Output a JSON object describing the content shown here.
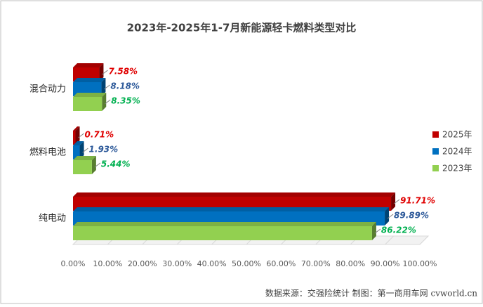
{
  "chart_data": {
    "type": "bar",
    "orientation": "horizontal",
    "title": "2023年-2025年1-7月新能源轻卡燃料类型对比",
    "categories": [
      "混合动力",
      "燃料电池",
      "纯电动"
    ],
    "series": [
      {
        "name": "2025年",
        "color": "#c00000",
        "values": [
          7.58,
          0.71,
          91.71
        ],
        "value_labels": [
          "7.58%",
          "0.71%",
          "91.71%"
        ],
        "label_color": "#e00000"
      },
      {
        "name": "2024年",
        "color": "#0070c0",
        "values": [
          8.18,
          1.93,
          89.89
        ],
        "value_labels": [
          "8.18%",
          "1.93%",
          "89.89%"
        ],
        "label_color": "#2e5a9a"
      },
      {
        "name": "2023年",
        "color": "#92d050",
        "values": [
          8.35,
          5.44,
          86.22
        ],
        "value_labels": [
          "8.35%",
          "5.44%",
          "86.22%"
        ],
        "label_color": "#00b050"
      }
    ],
    "xlim": [
      0,
      100
    ],
    "xticks": [
      {
        "value": 0,
        "label": "0.00%"
      },
      {
        "value": 10,
        "label": "10.00%"
      },
      {
        "value": 20,
        "label": "20.00%"
      },
      {
        "value": 30,
        "label": "30.00%"
      },
      {
        "value": 40,
        "label": "40.00%"
      },
      {
        "value": 50,
        "label": "50.00%"
      },
      {
        "value": 60,
        "label": "60.00%"
      },
      {
        "value": 70,
        "label": "70.00%"
      },
      {
        "value": 80,
        "label": "80.00%"
      },
      {
        "value": 90,
        "label": "90.00%"
      },
      {
        "value": 100,
        "label": "100.00%"
      }
    ],
    "legend": "right",
    "source": "数据来源：交强险统计  制图：第一商用车网 cvworld.cn"
  }
}
